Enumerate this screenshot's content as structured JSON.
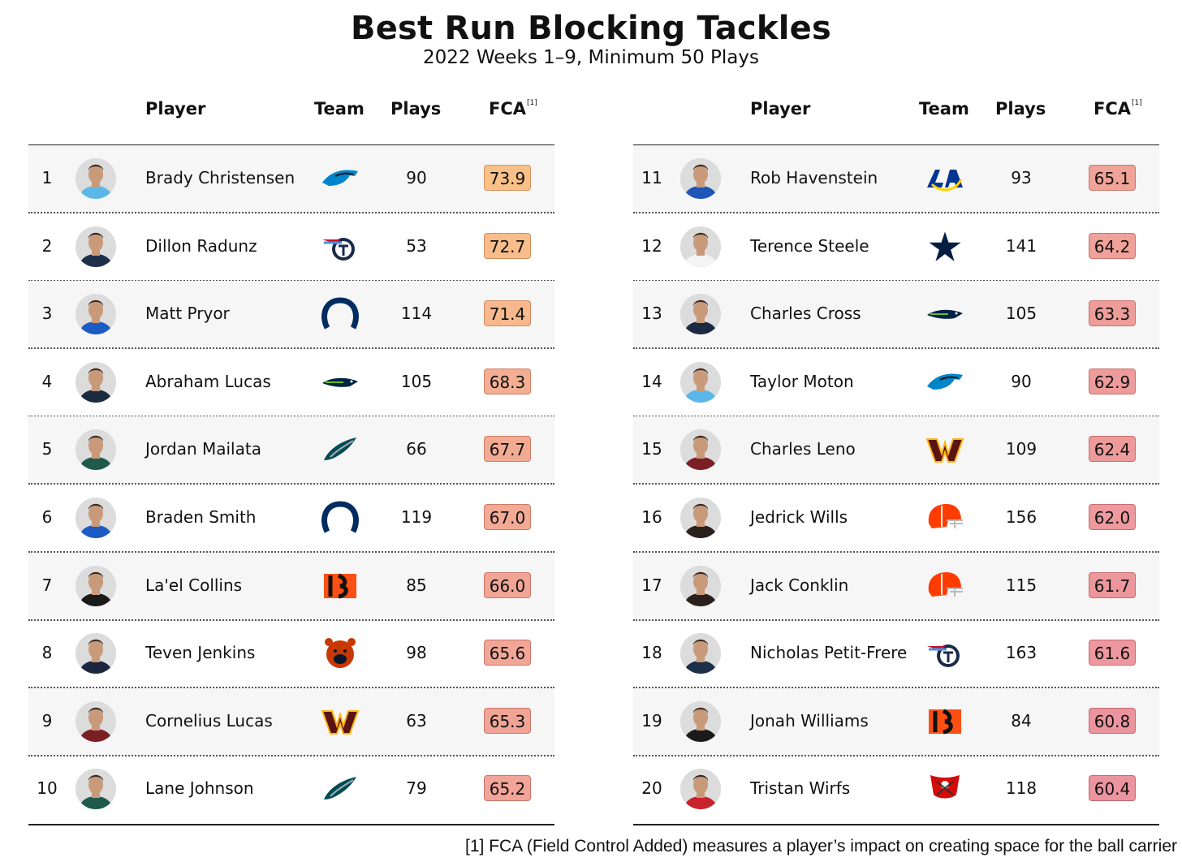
{
  "title": "Best Run Blocking Tackles",
  "subtitle": "2022 Weeks 1–9, Minimum 50 Plays",
  "footnote": "[1] FCA (Field Control Added) measures a player’s impact on creating space for the ball carrier",
  "chart_data": {
    "type": "table",
    "columns": {
      "player": "Player",
      "team": "Team",
      "plays": "Plays",
      "fca": "FCA",
      "fca_note": "[1]"
    },
    "fca_color_scale": {
      "high": "#f9b774",
      "low": "#e8818f"
    },
    "rows": [
      {
        "rank": "1",
        "player": "Brady Christensen",
        "team": "panthers",
        "plays": 90,
        "fca": "73.9"
      },
      {
        "rank": "2",
        "player": "Dillon Radunz",
        "team": "titans",
        "plays": 53,
        "fca": "72.7"
      },
      {
        "rank": "3",
        "player": "Matt Pryor",
        "team": "colts",
        "plays": 114,
        "fca": "71.4"
      },
      {
        "rank": "4",
        "player": "Abraham Lucas",
        "team": "seahawks",
        "plays": 105,
        "fca": "68.3"
      },
      {
        "rank": "5",
        "player": "Jordan Mailata",
        "team": "eagles",
        "plays": 66,
        "fca": "67.7"
      },
      {
        "rank": "6",
        "player": "Braden Smith",
        "team": "colts",
        "plays": 119,
        "fca": "67.0"
      },
      {
        "rank": "7",
        "player": "La'el Collins",
        "team": "bengals",
        "plays": 85,
        "fca": "66.0"
      },
      {
        "rank": "8",
        "player": "Teven Jenkins",
        "team": "bears",
        "plays": 98,
        "fca": "65.6"
      },
      {
        "rank": "9",
        "player": "Cornelius Lucas",
        "team": "commanders",
        "plays": 63,
        "fca": "65.3"
      },
      {
        "rank": "10",
        "player": "Lane Johnson",
        "team": "eagles",
        "plays": 79,
        "fca": "65.2"
      },
      {
        "rank": "11",
        "player": "Rob Havenstein",
        "team": "rams",
        "plays": 93,
        "fca": "65.1"
      },
      {
        "rank": "12",
        "player": "Terence Steele",
        "team": "cowboys",
        "plays": 141,
        "fca": "64.2"
      },
      {
        "rank": "13",
        "player": "Charles Cross",
        "team": "seahawks",
        "plays": 105,
        "fca": "63.3"
      },
      {
        "rank": "14",
        "player": "Taylor Moton",
        "team": "panthers",
        "plays": 90,
        "fca": "62.9"
      },
      {
        "rank": "15",
        "player": "Charles Leno",
        "team": "commanders",
        "plays": 109,
        "fca": "62.4"
      },
      {
        "rank": "16",
        "player": "Jedrick Wills",
        "team": "browns",
        "plays": 156,
        "fca": "62.0"
      },
      {
        "rank": "17",
        "player": "Jack Conklin",
        "team": "browns",
        "plays": 115,
        "fca": "61.7"
      },
      {
        "rank": "18",
        "player": "Nicholas Petit-Frere",
        "team": "titans",
        "plays": 163,
        "fca": "61.6"
      },
      {
        "rank": "19",
        "player": "Jonah Williams",
        "team": "bengals",
        "plays": 84,
        "fca": "60.8"
      },
      {
        "rank": "20",
        "player": "Tristan Wirfs",
        "team": "buccaneers",
        "plays": 118,
        "fca": "60.4"
      }
    ],
    "team_colors": {
      "panthers": "#0085ca",
      "titans": "#4b92db",
      "colts": "#002c5f",
      "seahawks": "#002244",
      "eagles": "#004c54",
      "bengals": "#fb4f14",
      "bears": "#c83803",
      "commanders": "#5a1414",
      "rams": "#003594",
      "cowboys": "#041e42",
      "browns": "#ff3c00",
      "buccaneers": "#d50a0a"
    },
    "jersey_colors": {
      "panthers": "#5ab7e8",
      "titans": "#1e2f4a",
      "colts": "#1c5bc4",
      "seahawks": "#1a2a40",
      "eagles": "#1f5a4a",
      "bengals": "#1a1a1a",
      "bears": "#1b2540",
      "commanders": "#7a1f24",
      "rams": "#1f56b8",
      "cowboys": "#f4f4f4",
      "browns": "#2a211c",
      "buccaneers": "#c8232c"
    }
  }
}
